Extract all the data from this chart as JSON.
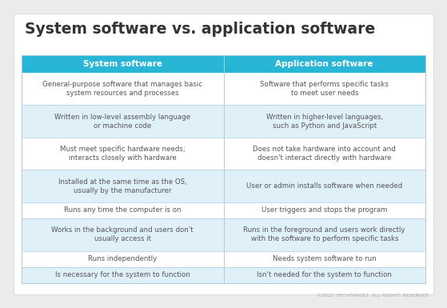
{
  "title": "System software vs. application software",
  "col1_header": "System software",
  "col2_header": "Application software",
  "header_bg": "#29b6d6",
  "header_text_color": "#ffffff",
  "row_bg_light": "#dff0f8",
  "row_bg_white": "#ffffff",
  "text_color": "#555555",
  "bg_color": "#ebebeb",
  "card_bg": "#ffffff",
  "rows": [
    [
      "General-purpose software that manages basic\nsystem resources and processes",
      "Software that performs specific tasks\nto meet user needs"
    ],
    [
      "Written in low-level assembly language\nor machine code",
      "Written in higher-level languages,\nsuch as Python and JavaScript"
    ],
    [
      "Must meet specific hardware needs;\ninteracts closely with hardware",
      "Does not take hardware into account and\ndoesn't interact directly with hardware"
    ],
    [
      "Installed at the same time as the OS,\nusually by the manufacturer",
      "User or admin installs software when needed"
    ],
    [
      "Runs any time the computer is on",
      "User triggers and stops the program"
    ],
    [
      "Works in the background and users don't\nusually access it",
      "Runs in the foreground and users work directly\nwith the software to perform specific tasks"
    ],
    [
      "Runs independently",
      "Needs system software to run"
    ],
    [
      "Is necessary for the system to function",
      "Isn't needed for the system to function"
    ]
  ],
  "footer": "©2022 TECHTARGET. ALL RIGHTS RESERVED.",
  "title_fontsize": 13.5,
  "header_fontsize": 7.5,
  "cell_fontsize": 6.2,
  "footer_fontsize": 4.5
}
